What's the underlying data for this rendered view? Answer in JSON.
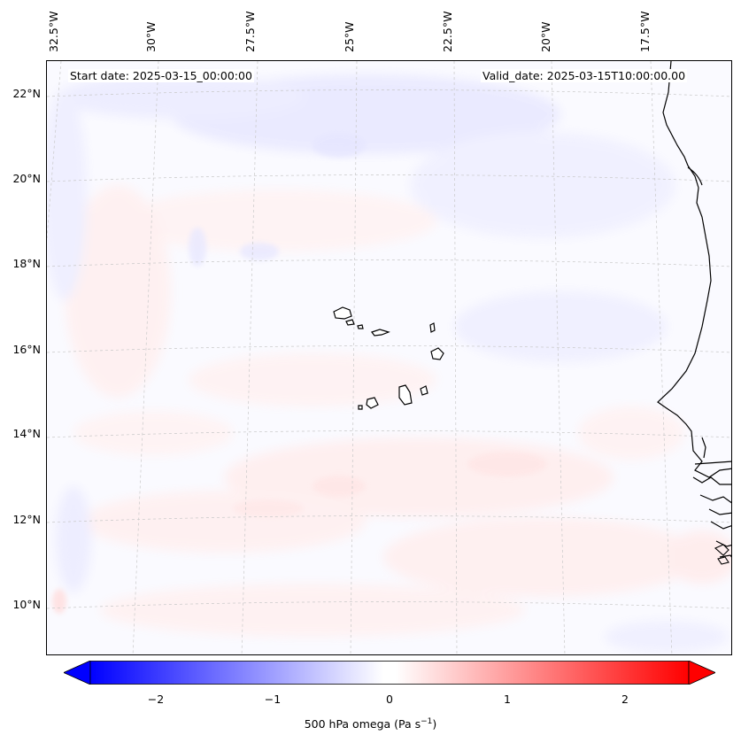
{
  "header": {
    "start_date": "Start date: 2025-03-15_00:00:00",
    "valid_date": "Valid_date: 2025-03-15T10:00:00.00"
  },
  "lon_labels": [
    "32.5°W",
    "30°W",
    "27.5°W",
    "25°W",
    "22.5°W",
    "20°W",
    "17.5°W"
  ],
  "lat_labels": [
    "22°N",
    "20°N",
    "18°N",
    "16°N",
    "14°N",
    "12°N",
    "10°N"
  ],
  "colorbar": {
    "ticks": [
      "−2",
      "−1",
      "0",
      "1",
      "2"
    ],
    "tick_values": [
      -2,
      -1,
      0,
      1,
      2
    ],
    "range": [
      -2.5,
      2.5
    ],
    "title": "500 hPa omega (Pa s",
    "title_sup": "−1",
    "title_end": ")",
    "colors": {
      "negative": "#0000ff",
      "zero": "#ffffff",
      "positive": "#ff0000"
    }
  },
  "map": {
    "field": "omega",
    "extent_lon": [
      -33,
      -14.5
    ],
    "extent_lat": [
      9,
      22.7
    ],
    "gridlines": true
  }
}
